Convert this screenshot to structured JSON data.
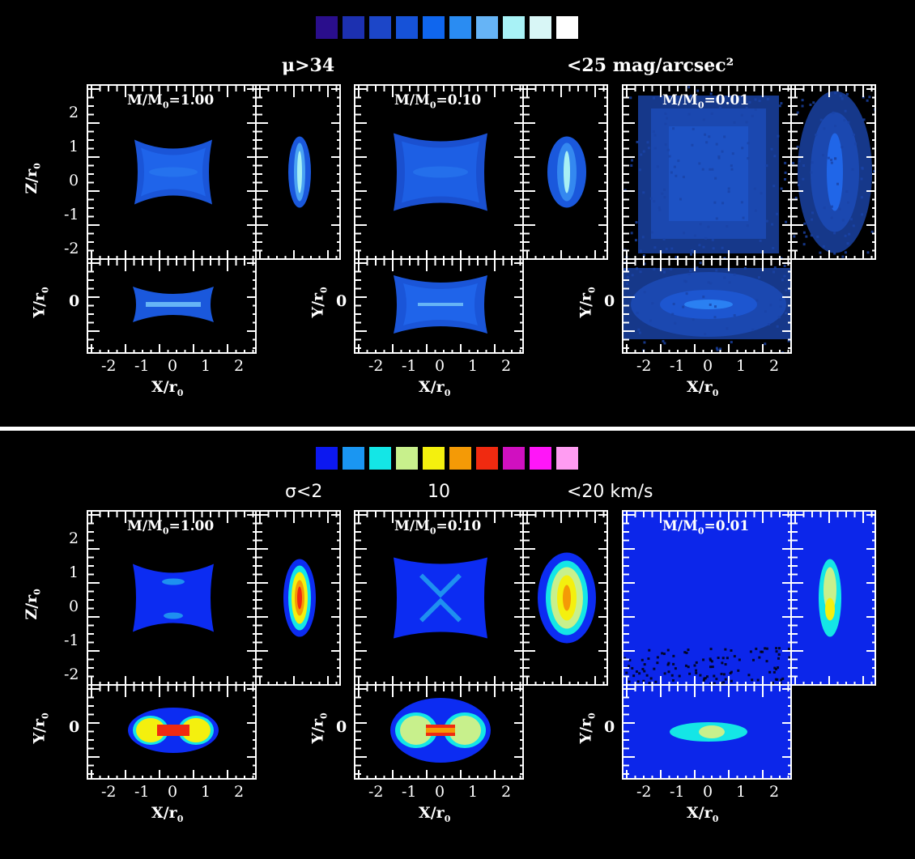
{
  "top_figure": {
    "colorbar": [
      "#2a0e8c",
      "#1c30b0",
      "#1c46c8",
      "#1652d8",
      "#0f66ee",
      "#2a8cf2",
      "#66b4f6",
      "#a8f2f6",
      "#d8f6f6",
      "#ffffff"
    ],
    "caption_left": "μ>34",
    "caption_right": "<25  mag/arcsec²"
  },
  "bottom_figure": {
    "colorbar": [
      "#0c18f0",
      "#1a96f2",
      "#14e6e6",
      "#c8f08c",
      "#f4f00e",
      "#f49a06",
      "#f02a10",
      "#d010c0",
      "#ff16f8",
      "#ff9cf2"
    ],
    "caption_left": "σ<2",
    "caption_mid": "10",
    "caption_right": "<20 km/s"
  },
  "panels": [
    {
      "mass_label": "M/M",
      "mass_sub": "0",
      "mass_value": "=1.00"
    },
    {
      "mass_label": "M/M",
      "mass_sub": "0",
      "mass_value": "=0.10"
    },
    {
      "mass_label": "M/M",
      "mass_sub": "0",
      "mass_value": "=0.01"
    }
  ],
  "axes": {
    "x_label": "X/r",
    "y_label": "Y/r",
    "z_label": "Z/r",
    "sub": "0",
    "x_ticks": [
      "-2",
      "-1",
      "0",
      "1",
      "2"
    ],
    "z_ticks": [
      "2",
      "1",
      "0",
      "-1",
      "-2"
    ],
    "y_tick": "0"
  }
}
